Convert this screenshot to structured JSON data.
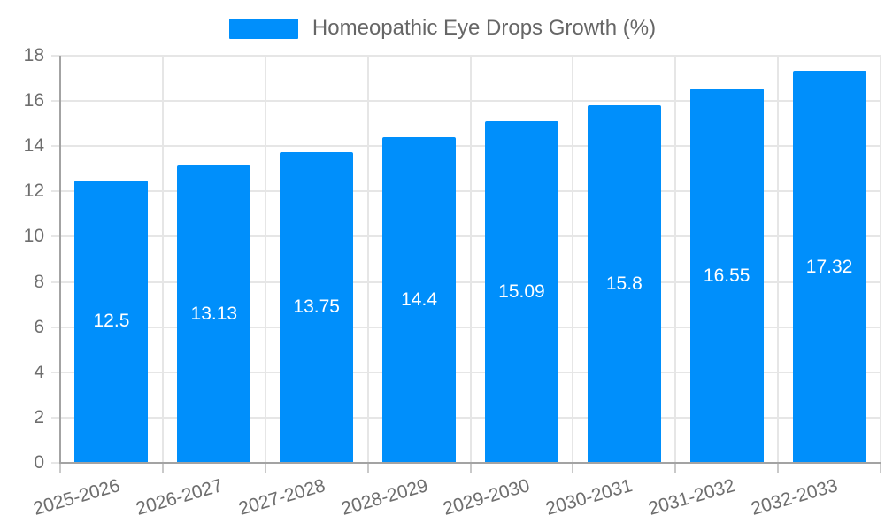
{
  "legend": {
    "label": "Homeopathic Eye Drops Growth (%)"
  },
  "chart_data": {
    "type": "bar",
    "title": "Homeopathic Eye Drops Growth (%)",
    "series": [
      {
        "name": "Homeopathic Eye Drops Growth (%)",
        "values": [
          12.5,
          13.13,
          13.75,
          14.4,
          15.09,
          15.8,
          16.55,
          17.32
        ],
        "data_labels": [
          "12.5",
          "13.13",
          "13.75",
          "14.4",
          "15.09",
          "15.8",
          "16.55",
          "17.32"
        ]
      }
    ],
    "categories": [
      "2025-2026",
      "2026-2027",
      "2027-2028",
      "2028-2029",
      "2029-2030",
      "2030-2031",
      "2031-2032",
      "2032-2033"
    ],
    "xlabel": "",
    "ylabel": "",
    "ylim": [
      0,
      18
    ],
    "y_tick_step": 2,
    "y_tick_labels": [
      "0",
      "2",
      "4",
      "6",
      "8",
      "10",
      "12",
      "14",
      "16",
      "18"
    ],
    "grid": true,
    "legend_position": "top",
    "x_label_rotation_deg": -16
  },
  "colors": {
    "bar": "#008FFB",
    "grid": "#e6e6e6",
    "axis_line": "#a3a3a3",
    "tick_mark": "#c9c9c9",
    "tick_text": "#6e6e6e",
    "legend_text": "#666666",
    "value_label_text": "#ffffff",
    "background": "#ffffff"
  }
}
